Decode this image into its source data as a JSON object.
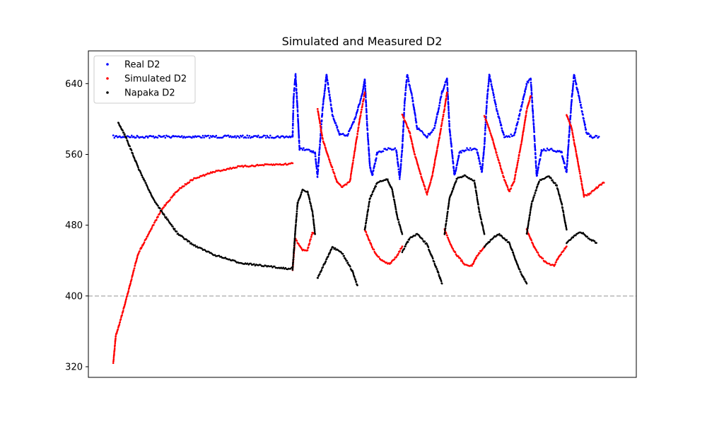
{
  "chart_data": {
    "type": "scatter",
    "title": "Simulated and Measured D2",
    "xlabel": "",
    "ylabel": "",
    "xlim": [
      -0.5,
      10.5
    ],
    "ylim": [
      308,
      677
    ],
    "yticks": [
      320,
      400,
      480,
      560,
      640
    ],
    "xticks_visible": false,
    "reference_line": {
      "y": 400,
      "style": "dashed",
      "color": "#b8b8b8"
    },
    "legend": {
      "position": "top-left"
    },
    "series": [
      {
        "name": "Real D2",
        "color": "#0000ff",
        "segments": [
          [
            [
              0.0,
              580
            ],
            [
              0.5,
              580
            ],
            [
              1.0,
              580
            ],
            [
              2.0,
              580
            ],
            [
              3.0,
              580
            ],
            [
              3.5,
              580
            ],
            [
              3.6,
              580
            ]
          ],
          [
            [
              3.6,
              580
            ],
            [
              3.62,
              625
            ],
            [
              3.66,
              650
            ],
            [
              3.7,
              610
            ],
            [
              3.74,
              566
            ],
            [
              3.9,
              566
            ],
            [
              4.05,
              562
            ],
            [
              4.1,
              535
            ],
            [
              4.2,
              610
            ],
            [
              4.28,
              650
            ],
            [
              4.4,
              605
            ],
            [
              4.55,
              582
            ],
            [
              4.7,
              582
            ],
            [
              4.85,
              600
            ],
            [
              5.0,
              628
            ],
            [
              5.05,
              645
            ],
            [
              5.1,
              590
            ],
            [
              5.15,
              548
            ],
            [
              5.2,
              536
            ],
            [
              5.3,
              562
            ],
            [
              5.5,
              566
            ],
            [
              5.68,
              566
            ],
            [
              5.75,
              533
            ],
            [
              5.8,
              565
            ],
            [
              5.85,
              620
            ],
            [
              5.9,
              650
            ],
            [
              6.0,
              625
            ],
            [
              6.1,
              590
            ],
            [
              6.3,
              580
            ],
            [
              6.45,
              590
            ],
            [
              6.6,
              630
            ],
            [
              6.7,
              646
            ],
            [
              6.75,
              590
            ],
            [
              6.85,
              536
            ],
            [
              6.95,
              562
            ],
            [
              7.1,
              566
            ],
            [
              7.3,
              565
            ],
            [
              7.4,
              540
            ],
            [
              7.45,
              570
            ],
            [
              7.5,
              620
            ],
            [
              7.55,
              650
            ],
            [
              7.7,
              610
            ],
            [
              7.85,
              580
            ],
            [
              8.05,
              582
            ],
            [
              8.2,
              615
            ],
            [
              8.3,
              640
            ],
            [
              8.38,
              646
            ],
            [
              8.45,
              585
            ],
            [
              8.5,
              535
            ],
            [
              8.6,
              565
            ],
            [
              8.8,
              566
            ],
            [
              9.0,
              562
            ],
            [
              9.1,
              540
            ],
            [
              9.2,
              620
            ],
            [
              9.25,
              650
            ],
            [
              9.35,
              625
            ],
            [
              9.5,
              585
            ],
            [
              9.6,
              580
            ],
            [
              9.75,
              580
            ]
          ]
        ]
      },
      {
        "name": "Simulated D2",
        "color": "#ff0000",
        "segments": [
          [
            [
              0.0,
              324
            ],
            [
              0.05,
              355
            ],
            [
              0.1,
              364
            ],
            [
              0.2,
              384
            ],
            [
              0.3,
              405
            ],
            [
              0.5,
              448
            ],
            [
              0.8,
              480
            ],
            [
              1.0,
              500
            ],
            [
              1.3,
              520
            ],
            [
              1.6,
              532
            ],
            [
              2.0,
              540
            ],
            [
              2.5,
              546
            ],
            [
              3.0,
              548
            ],
            [
              3.5,
              549
            ],
            [
              3.6,
              550
            ]
          ],
          [
            [
              3.6,
              430
            ],
            [
              3.65,
              465
            ],
            [
              3.8,
              452
            ],
            [
              3.9,
              452
            ],
            [
              4.0,
              472
            ],
            [
              4.05,
              470
            ]
          ],
          [
            [
              4.1,
              612
            ],
            [
              4.2,
              578
            ],
            [
              4.3,
              560
            ],
            [
              4.5,
              528
            ],
            [
              4.6,
              523
            ],
            [
              4.75,
              529
            ],
            [
              4.85,
              565
            ],
            [
              4.95,
              600
            ],
            [
              5.05,
              630
            ]
          ],
          [
            [
              5.05,
              475
            ],
            [
              5.2,
              455
            ],
            [
              5.3,
              445
            ],
            [
              5.45,
              438
            ],
            [
              5.55,
              436
            ],
            [
              5.7,
              446
            ],
            [
              5.8,
              456
            ]
          ],
          [
            [
              5.8,
              605
            ],
            [
              5.95,
              585
            ],
            [
              6.05,
              560
            ],
            [
              6.2,
              532
            ],
            [
              6.3,
              515
            ],
            [
              6.4,
              535
            ],
            [
              6.55,
              580
            ],
            [
              6.65,
              612
            ],
            [
              6.7,
              630
            ]
          ],
          [
            [
              6.65,
              475
            ],
            [
              6.8,
              455
            ],
            [
              6.9,
              446
            ],
            [
              7.05,
              436
            ],
            [
              7.2,
              434
            ],
            [
              7.3,
              445
            ],
            [
              7.45,
              456
            ]
          ],
          [
            [
              7.45,
              604
            ],
            [
              7.6,
              580
            ],
            [
              7.7,
              560
            ],
            [
              7.85,
              532
            ],
            [
              7.95,
              518
            ],
            [
              8.05,
              530
            ],
            [
              8.2,
              575
            ],
            [
              8.3,
              610
            ],
            [
              8.38,
              626
            ]
          ],
          [
            [
              8.3,
              475
            ],
            [
              8.45,
              455
            ],
            [
              8.55,
              446
            ],
            [
              8.7,
              437
            ],
            [
              8.85,
              434
            ],
            [
              8.95,
              445
            ],
            [
              9.1,
              456
            ]
          ],
          [
            [
              9.1,
              605
            ],
            [
              9.2,
              590
            ],
            [
              9.3,
              560
            ],
            [
              9.38,
              535
            ],
            [
              9.45,
              513
            ],
            [
              9.55,
              515
            ],
            [
              9.7,
              522
            ],
            [
              9.85,
              528
            ]
          ]
        ]
      },
      {
        "name": "Napaka D2",
        "color": "#000000",
        "segments": [
          [
            [
              0.1,
              596
            ],
            [
              0.25,
              580
            ],
            [
              0.5,
              545
            ],
            [
              0.8,
              510
            ],
            [
              1.0,
              493
            ],
            [
              1.3,
              470
            ],
            [
              1.6,
              458
            ],
            [
              2.0,
              447
            ],
            [
              2.5,
              438
            ],
            [
              3.0,
              434
            ],
            [
              3.5,
              431
            ],
            [
              3.6,
              432
            ]
          ],
          [
            [
              3.6,
              430
            ],
            [
              3.65,
              470
            ],
            [
              3.7,
              505
            ],
            [
              3.8,
              520
            ],
            [
              3.9,
              518
            ],
            [
              4.0,
              495
            ],
            [
              4.05,
              470
            ]
          ],
          [
            [
              4.1,
              420
            ],
            [
              4.2,
              432
            ],
            [
              4.4,
              455
            ],
            [
              4.6,
              448
            ],
            [
              4.8,
              428
            ],
            [
              4.9,
              412
            ]
          ],
          [
            [
              5.05,
              475
            ],
            [
              5.15,
              510
            ],
            [
              5.3,
              528
            ],
            [
              5.5,
              532
            ],
            [
              5.6,
              520
            ],
            [
              5.7,
              490
            ],
            [
              5.8,
              470
            ]
          ],
          [
            [
              5.8,
              450
            ],
            [
              5.95,
              465
            ],
            [
              6.1,
              470
            ],
            [
              6.3,
              458
            ],
            [
              6.5,
              430
            ],
            [
              6.6,
              414
            ]
          ],
          [
            [
              6.65,
              470
            ],
            [
              6.75,
              510
            ],
            [
              6.9,
              533
            ],
            [
              7.05,
              536
            ],
            [
              7.25,
              530
            ],
            [
              7.35,
              495
            ],
            [
              7.45,
              470
            ]
          ],
          [
            [
              7.45,
              455
            ],
            [
              7.6,
              465
            ],
            [
              7.75,
              470
            ],
            [
              7.95,
              460
            ],
            [
              8.15,
              430
            ],
            [
              8.3,
              414
            ]
          ],
          [
            [
              8.3,
              470
            ],
            [
              8.4,
              505
            ],
            [
              8.55,
              530
            ],
            [
              8.75,
              535
            ],
            [
              8.9,
              525
            ],
            [
              9.0,
              505
            ],
            [
              9.1,
              475
            ]
          ],
          [
            [
              9.1,
              460
            ],
            [
              9.2,
              465
            ],
            [
              9.3,
              470
            ],
            [
              9.4,
              472
            ],
            [
              9.55,
              465
            ],
            [
              9.7,
              460
            ]
          ]
        ]
      }
    ]
  }
}
